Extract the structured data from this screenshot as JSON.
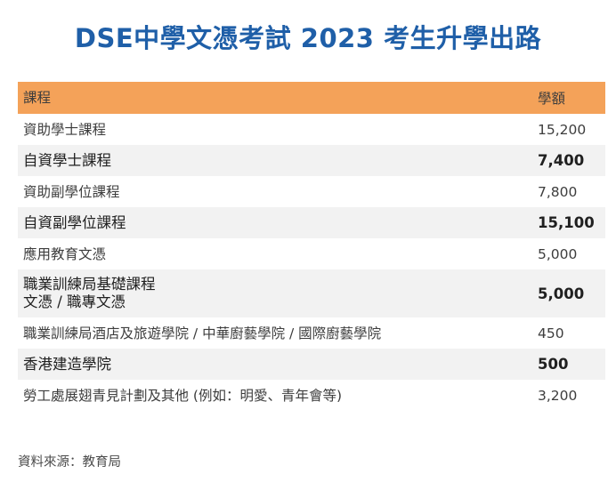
{
  "title": "DSE中學文憑考試 2023 考生升學出路",
  "table": {
    "headers": [
      "課程",
      "學額"
    ],
    "rows": [
      {
        "course": [
          "資助學士課程"
        ],
        "places": "15,200",
        "shaded": false
      },
      {
        "course": [
          "自資學士課程"
        ],
        "places": "7,400",
        "shaded": true
      },
      {
        "course": [
          "資助副學位課程"
        ],
        "places": "7,800",
        "shaded": false
      },
      {
        "course": [
          "自資副學位課程"
        ],
        "places": "15,100",
        "shaded": true
      },
      {
        "course": [
          "應用教育文憑"
        ],
        "places": "5,000",
        "shaded": false
      },
      {
        "course": [
          "職業訓練局基礎課程",
          "文憑 / 職專文憑"
        ],
        "places": "5,000",
        "shaded": true
      },
      {
        "course": [
          "職業訓練局酒店及旅遊學院 / 中華廚藝學院 / 國際廚藝學院"
        ],
        "places": "450",
        "shaded": false
      },
      {
        "course": [
          "香港建造學院"
        ],
        "places": "500",
        "shaded": true
      },
      {
        "course": [
          "勞工處展翅青見計劃及其他 (例如：明愛、青年會等)"
        ],
        "places": "3,200",
        "shaded": false
      }
    ]
  },
  "source": "資料來源：教育局",
  "colors": {
    "title": "#1f5fa8",
    "header_bg": "#f4a259",
    "shaded_row_bg": "#f2f2f2"
  }
}
